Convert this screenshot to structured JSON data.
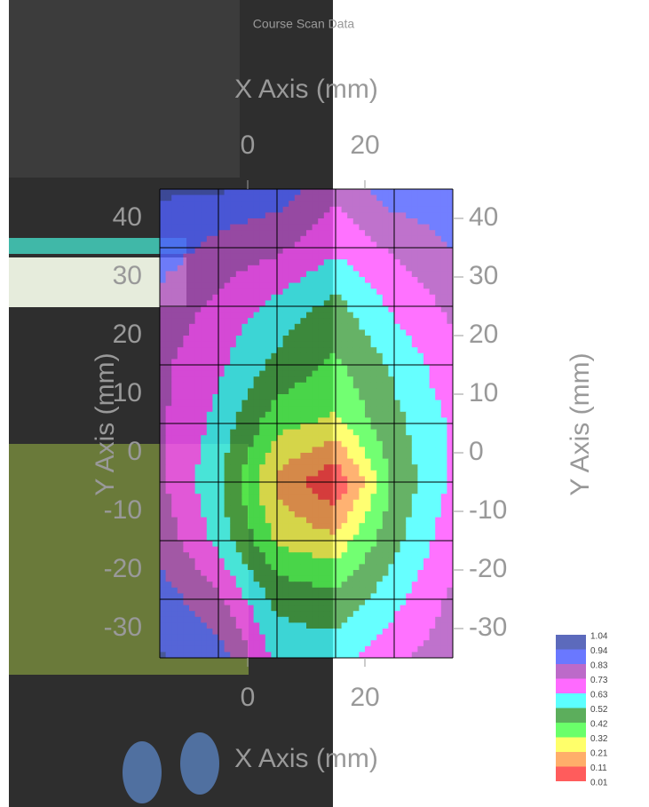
{
  "chart_data": {
    "type": "contour",
    "title": "Course Scan Data",
    "xlabel": "X Axis (mm)",
    "ylabel": "Y Axis (mm)",
    "x": [
      -15,
      -5,
      5,
      15,
      25,
      35
    ],
    "y": [
      45,
      35,
      25,
      15,
      5,
      -5,
      -15,
      -25,
      -35
    ],
    "z": [
      [
        0.1,
        0.1,
        0.15,
        0.3,
        0.15,
        0.15
      ],
      [
        0.15,
        0.25,
        0.3,
        0.4,
        0.3,
        0.2
      ],
      [
        0.25,
        0.35,
        0.45,
        0.55,
        0.4,
        0.3
      ],
      [
        0.3,
        0.4,
        0.55,
        0.65,
        0.5,
        0.35
      ],
      [
        0.3,
        0.45,
        0.7,
        0.75,
        0.55,
        0.4
      ],
      [
        0.3,
        0.5,
        0.85,
        1.04,
        0.6,
        0.4
      ],
      [
        0.25,
        0.45,
        0.75,
        0.8,
        0.55,
        0.35
      ],
      [
        0.15,
        0.3,
        0.55,
        0.6,
        0.45,
        0.3
      ],
      [
        0.1,
        0.15,
        0.45,
        0.45,
        0.35,
        0.25
      ]
    ],
    "xlim": [
      -15,
      35
    ],
    "ylim": [
      -35,
      45
    ],
    "xticks": [
      0,
      20
    ],
    "yticks": [
      -30,
      -20,
      -10,
      0,
      10,
      20,
      30,
      40
    ],
    "grid": true,
    "levels": [
      0.01,
      0.11,
      0.21,
      0.32,
      0.42,
      0.52,
      0.63,
      0.73,
      0.83,
      0.94,
      1.04
    ],
    "colors": [
      "#4050b0",
      "#5060ff",
      "#b050c0",
      "#ff50ff",
      "#40ffff",
      "#40a040",
      "#50ff50",
      "#ffff50",
      "#ffa050",
      "#ff4040"
    ]
  }
}
